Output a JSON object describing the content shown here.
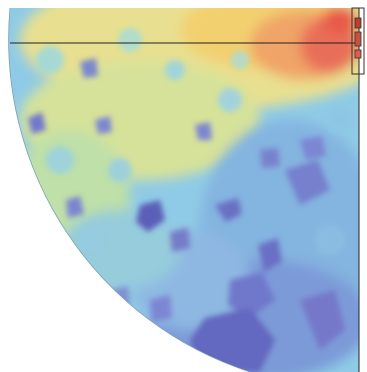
{
  "view": {
    "kind": "field-heatmap-quarter-disk",
    "colormap": [
      "#5b5fb8",
      "#7a86d6",
      "#8fc8e8",
      "#9ad8d8",
      "#d8e89a",
      "#f0d870",
      "#f0a060",
      "#e86050"
    ],
    "background": "#ffffff",
    "line_color": "#202020",
    "highlight_color": "#e85848"
  }
}
